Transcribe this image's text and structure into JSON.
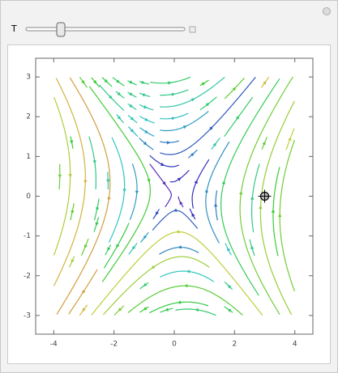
{
  "control": {
    "label": "T"
  },
  "chart_data": {
    "type": "streamplot",
    "xlim": [
      -4.6,
      4.6
    ],
    "ylim": [
      -3.47,
      3.47
    ],
    "xticks": [
      -4,
      -2,
      0,
      2,
      4
    ],
    "yticks": [
      -3,
      -2,
      -1,
      0,
      1,
      2,
      3
    ],
    "locator": [
      3,
      0
    ]
  }
}
